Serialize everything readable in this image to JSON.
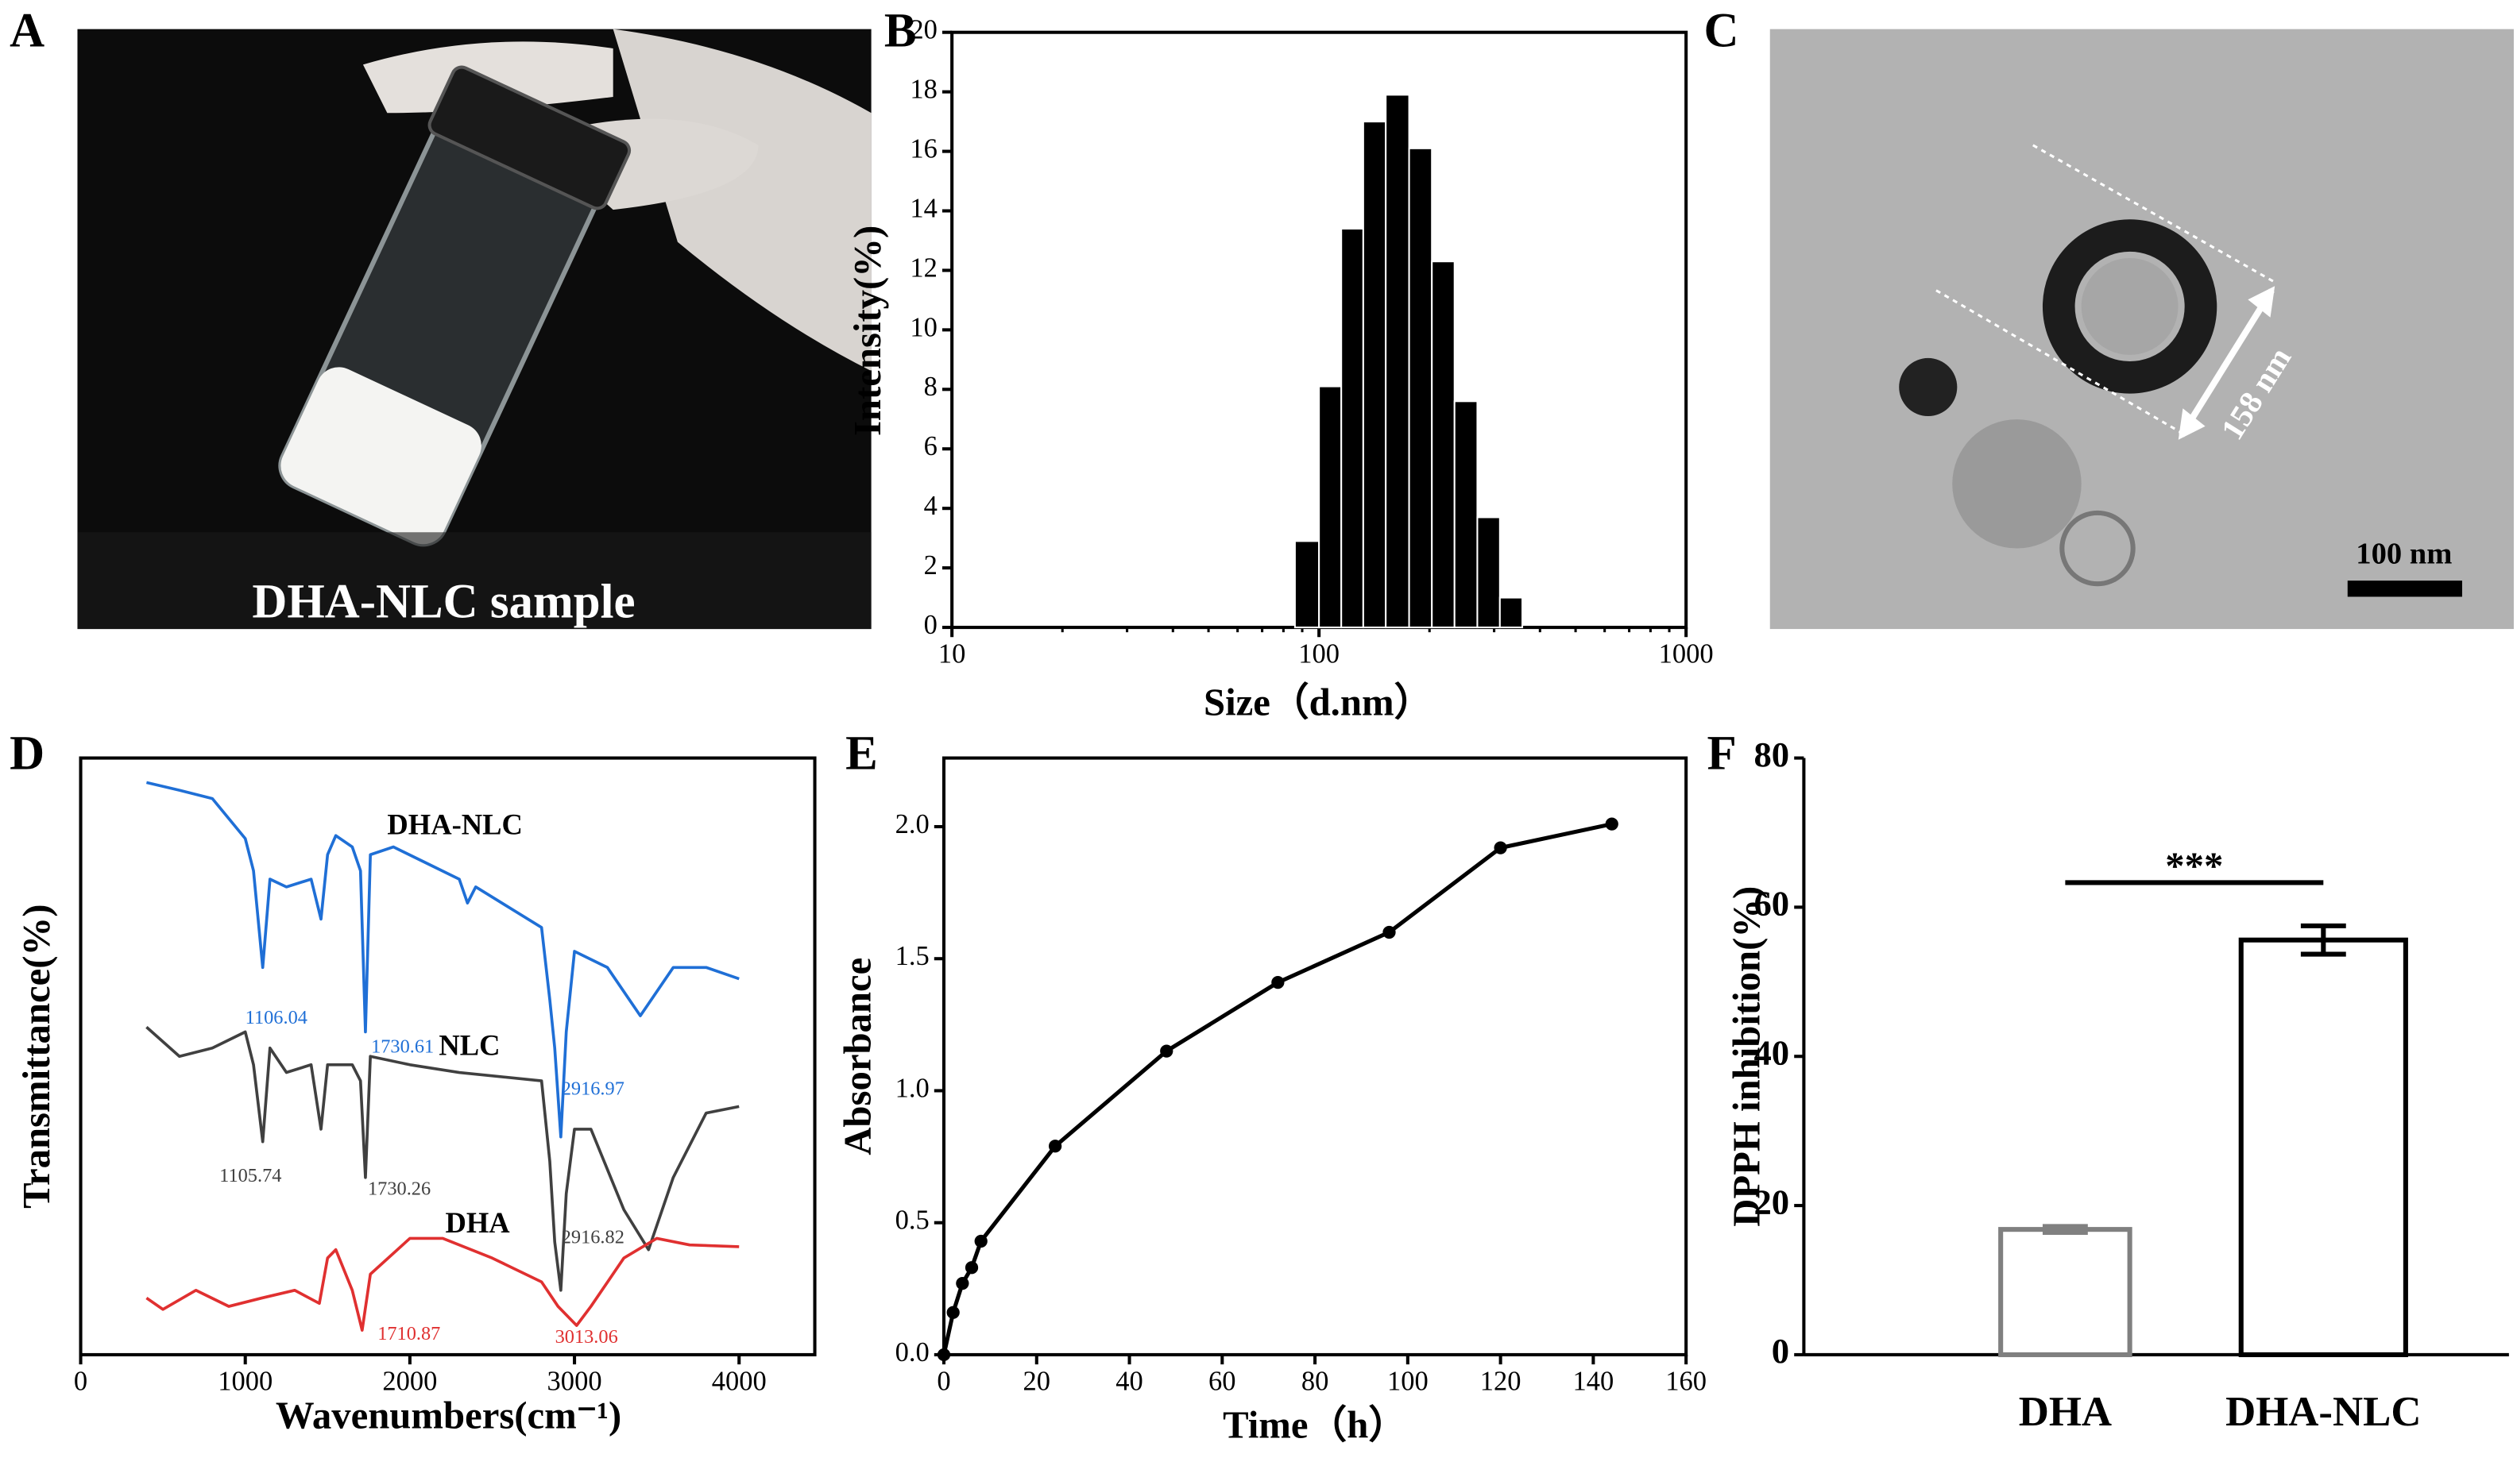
{
  "images": [
    {
      "label": "A",
      "caption": "DHA-NLC sample"
    },
    {
      "label": "C",
      "annotations": [
        "158 nm",
        "100 nm"
      ]
    }
  ],
  "chart_data": [
    {
      "type": "histogram",
      "panel_label": "B",
      "x_label": "Size（d.nm）",
      "y_label": "Intensity(%)",
      "bins": [
        86,
        100,
        115,
        132,
        152,
        176,
        203,
        234,
        270,
        311,
        358
      ],
      "values": [
        2.9,
        8.1,
        13.4,
        17.0,
        17.9,
        16.1,
        12.3,
        7.6,
        3.7,
        1.0
      ],
      "color": "#000000",
      "xlog": true,
      "xlim": [
        10,
        1000
      ],
      "xticks": [
        10,
        100,
        1000
      ],
      "ylim": [
        0,
        20
      ],
      "yticks": [
        0,
        2,
        4,
        6,
        8,
        10,
        12,
        14,
        16,
        18,
        20
      ]
    },
    {
      "type": "line",
      "panel_label": "D",
      "x_label": "Wavenumbers(cm⁻¹)",
      "y_label": "Transmittance(%)",
      "xlim": [
        0,
        4460
      ],
      "xticks": [
        0,
        1000,
        2000,
        3000,
        4000
      ],
      "ylim": [
        0,
        100
      ],
      "yticks": [],
      "series": [
        {
          "name": "DHA-NLC",
          "color": "#1f6fd6",
          "x": [
            400,
            600,
            800,
            1000,
            1050,
            1106,
            1150,
            1250,
            1400,
            1460,
            1500,
            1550,
            1650,
            1700,
            1730,
            1760,
            1900,
            2100,
            2300,
            2350,
            2400,
            2800,
            2850,
            2880,
            2917,
            2950,
            3000,
            3200,
            3400,
            3600,
            3800,
            4000
          ],
          "values": [
            95.9,
            94.6,
            93.2,
            86.5,
            81.1,
            64.9,
            79.7,
            78.4,
            79.7,
            73.0,
            83.8,
            87.0,
            85.1,
            81.1,
            54.1,
            83.8,
            85.1,
            82.4,
            79.7,
            75.7,
            78.4,
            71.6,
            59.5,
            51.4,
            36.5,
            54.1,
            67.6,
            64.9,
            56.8,
            64.9,
            64.9,
            63.0
          ],
          "annotations": [
            "1106.04",
            "1730.61",
            "2916.97"
          ]
        },
        {
          "name": "NLC",
          "color": "#404040",
          "x": [
            400,
            600,
            800,
            1000,
            1050,
            1106,
            1150,
            1250,
            1400,
            1460,
            1500,
            1650,
            1700,
            1730,
            1760,
            2000,
            2300,
            2800,
            2850,
            2880,
            2917,
            2950,
            3000,
            3100,
            3300,
            3450,
            3600,
            3800,
            4000
          ],
          "values": [
            54.9,
            50.0,
            51.4,
            54.1,
            48.6,
            35.7,
            51.4,
            47.3,
            48.6,
            37.8,
            48.6,
            48.6,
            45.9,
            29.7,
            50.0,
            48.6,
            47.3,
            45.9,
            32.4,
            18.9,
            10.8,
            27.0,
            37.8,
            37.8,
            24.3,
            17.6,
            29.7,
            40.5,
            41.6
          ],
          "annotations": [
            "1105.74",
            "1730.26",
            "2916.82"
          ]
        },
        {
          "name": "DHA",
          "color": "#e03030",
          "x": [
            400,
            500,
            700,
            900,
            1100,
            1300,
            1450,
            1500,
            1550,
            1650,
            1710,
            1760,
            2000,
            2200,
            2500,
            2800,
            2900,
            3013,
            3100,
            3300,
            3500,
            3700,
            4000
          ],
          "values": [
            9.5,
            7.6,
            10.8,
            8.1,
            9.5,
            10.8,
            8.6,
            16.2,
            17.6,
            10.8,
            4.1,
            13.5,
            19.5,
            19.5,
            16.2,
            12.2,
            8.1,
            4.9,
            8.1,
            16.2,
            19.5,
            18.4,
            18.1
          ],
          "annotations": [
            "1710.87",
            "3013.06"
          ]
        }
      ]
    },
    {
      "type": "line",
      "panel_label": "E",
      "x_label": "Time（h）",
      "y_label": "Absorbance",
      "markers": true,
      "x": [
        0,
        2,
        4,
        6,
        8,
        24,
        48,
        72,
        96,
        120,
        144
      ],
      "values": [
        0,
        0.16,
        0.27,
        0.33,
        0.43,
        0.79,
        1.15,
        1.41,
        1.6,
        1.92,
        2.01
      ],
      "color": "#000000",
      "xlim": [
        0,
        160
      ],
      "xticks": [
        0,
        20,
        40,
        60,
        80,
        100,
        120,
        140,
        160
      ],
      "ylim": [
        0,
        2.26
      ],
      "yticks": [
        {
          "value": 0,
          "label": "0.0"
        },
        0.5,
        {
          "value": 1,
          "label": "1.0"
        },
        1.5,
        {
          "value": 2,
          "label": "2.0"
        }
      ]
    },
    {
      "type": "bar",
      "panel_label": "F",
      "y_label": "DPPH inhibition(%)",
      "categories": [
        "DHA",
        "DHA-NLC"
      ],
      "values": [
        16.8,
        55.6
      ],
      "errors": [
        0.4,
        1.9
      ],
      "colors": [
        "#808080",
        "#000000"
      ],
      "significance": {
        "label": "***",
        "y": 63.3
      },
      "ylim": [
        0,
        80
      ],
      "yticks": [
        0,
        20,
        40,
        60,
        80
      ]
    }
  ]
}
